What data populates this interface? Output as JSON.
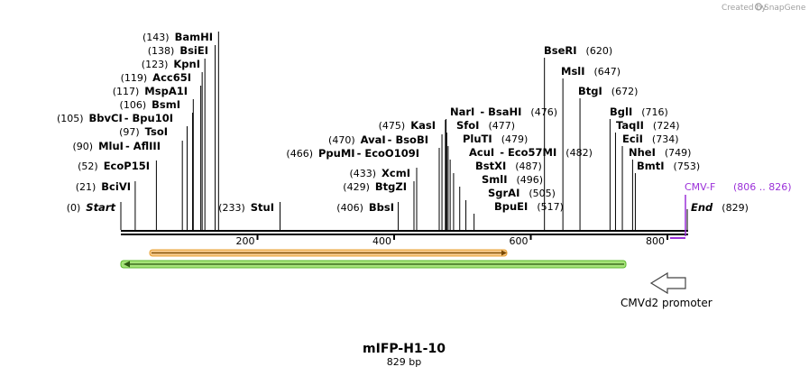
{
  "credit": {
    "prefix": "Created by",
    "brand": "SnapGene"
  },
  "map": {
    "title": "mIFP-H1-10",
    "length_label": "829 bp",
    "total_bp": 829
  },
  "scale_ticks": [
    {
      "bp": 200,
      "label": "200"
    },
    {
      "bp": 400,
      "label": "400"
    },
    {
      "bp": 600,
      "label": "600"
    },
    {
      "bp": 800,
      "label": "800"
    }
  ],
  "left_sites": [
    {
      "pos": "(143)",
      "name": "BamHI",
      "bp": 143
    },
    {
      "pos": "(138)",
      "name": "BsiEI",
      "bp": 138
    },
    {
      "pos": "(123)",
      "name": "KpnI",
      "bp": 123
    },
    {
      "pos": "(119)",
      "name": "Acc65I",
      "bp": 119
    },
    {
      "pos": "(117)",
      "name": "MspA1I",
      "bp": 117
    },
    {
      "pos": "(106)",
      "name": "BsmI",
      "bp": 106
    },
    {
      "pos": "(105)",
      "name": "BbvCI",
      "name2": "Bpu10I",
      "bp": 105
    },
    {
      "pos": "(97)",
      "name": "TsoI",
      "bp": 97
    },
    {
      "pos": "(90)",
      "name": "MluI",
      "name2": "AflIII",
      "bp": 90
    },
    {
      "pos": "(52)",
      "name": "EcoP15I",
      "bp": 52
    },
    {
      "pos": "(21)",
      "name": "BciVI",
      "bp": 21
    },
    {
      "pos": "(0)",
      "name": "Start",
      "bp": 0,
      "italic": true
    }
  ],
  "mid_sites": [
    {
      "pos": "(233)",
      "name": "StuI",
      "bp": 233
    },
    {
      "pos": "(475)",
      "name": "KasI",
      "bp": 475
    },
    {
      "pos": "(470)",
      "name": "AvaI",
      "name2": "BsoBI",
      "bp": 470
    },
    {
      "pos": "(466)",
      "name": "PpuMI",
      "name2": "EcoO109I",
      "bp": 466
    },
    {
      "pos": "(433)",
      "name": "XcmI",
      "bp": 433
    },
    {
      "pos": "(429)",
      "name": "BtgZI",
      "bp": 429
    },
    {
      "pos": "(406)",
      "name": "BbsI",
      "bp": 406
    }
  ],
  "right_sites": [
    {
      "name": "NarI",
      "name2": "BsaHI",
      "pos": "(476)",
      "bp": 476
    },
    {
      "name": "SfoI",
      "pos": "(477)",
      "bp": 477
    },
    {
      "name": "PluTI",
      "pos": "(479)",
      "bp": 479
    },
    {
      "name": "AcuI",
      "name2": "Eco57MI",
      "pos": "(482)",
      "bp": 482
    },
    {
      "name": "BstXI",
      "pos": "(487)",
      "bp": 487
    },
    {
      "name": "SmlI",
      "pos": "(496)",
      "bp": 496
    },
    {
      "name": "SgrAI",
      "pos": "(505)",
      "bp": 505
    },
    {
      "name": "BpuEI",
      "pos": "(517)",
      "bp": 517
    },
    {
      "name": "BseRI",
      "pos": "(620)",
      "bp": 620
    },
    {
      "name": "MslI",
      "pos": "(647)",
      "bp": 647
    },
    {
      "name": "BtgI",
      "pos": "(672)",
      "bp": 672
    },
    {
      "name": "BglI",
      "pos": "(716)",
      "bp": 716
    },
    {
      "name": "TaqII",
      "pos": "(724)",
      "bp": 724
    },
    {
      "name": "EciI",
      "pos": "(734)",
      "bp": 734
    },
    {
      "name": "NheI",
      "pos": "(749)",
      "bp": 749
    },
    {
      "name": "BmtI",
      "pos": "(753)",
      "bp": 753
    },
    {
      "name": "End",
      "pos": "(829)",
      "bp": 829,
      "italic": true
    }
  ],
  "primer": {
    "name": "CMV-F",
    "range": "(806 .. 826)",
    "color": "#9b30d9"
  },
  "features": {
    "orange_arrow_color": "#e8a030",
    "green_arrow_color": "#5cb82e",
    "promoter_label": "CMVd2 promoter"
  }
}
